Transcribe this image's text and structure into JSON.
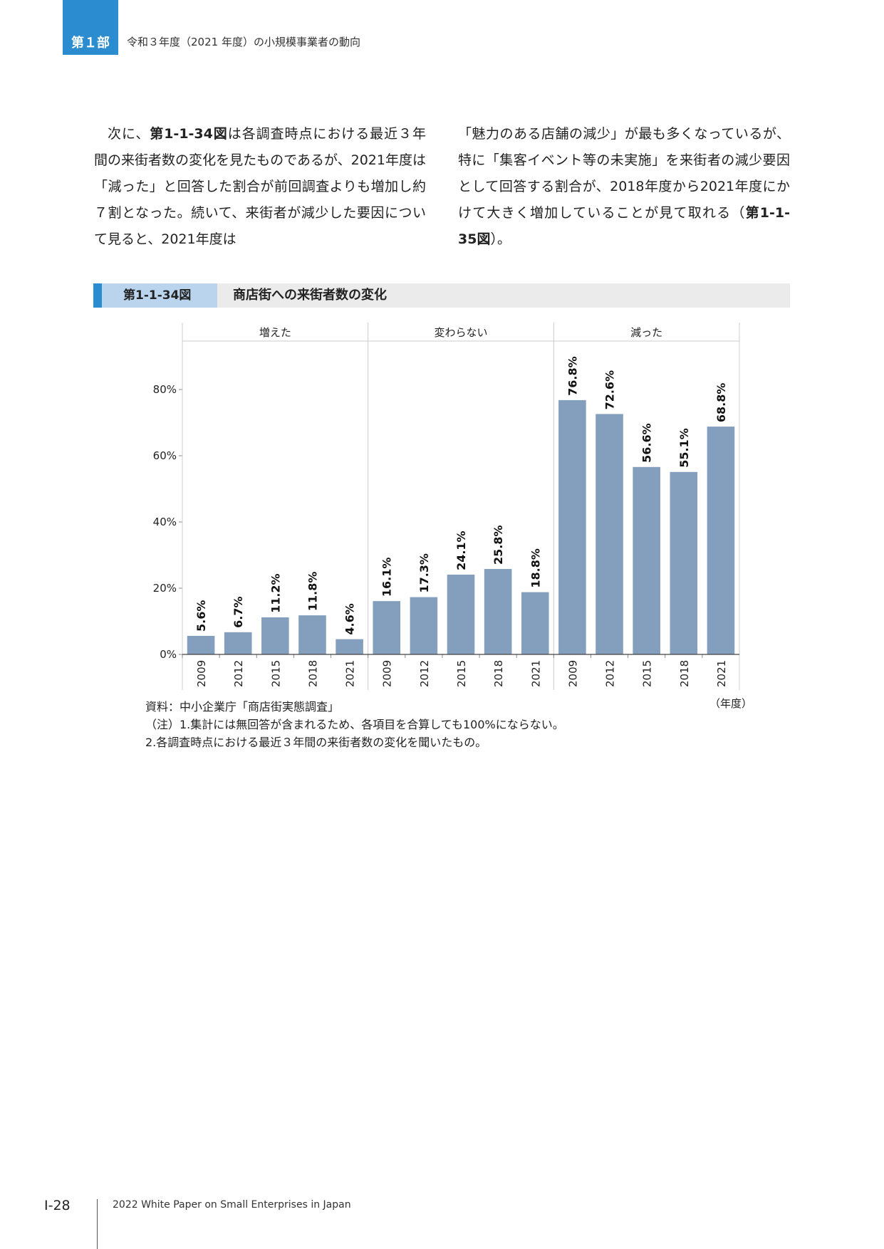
{
  "header": {
    "part_label": "第１部",
    "title": "令和３年度（2021 年度）の小規模事業者の動向"
  },
  "body": {
    "left": {
      "seg1": "次に、",
      "ref1": "第1-1-34図",
      "seg2": "は各調査時点における最近３年間の来街者数の変化を見たものであるが、2021年度は「減った」と回答した割合が前回調査よりも増加し約７割となった。続いて、来街者が減少した要因について見ると、2021年度は"
    },
    "right": {
      "seg1": "「魅力のある店舗の減少」が最も多くなっているが、特に「集客イベント等の未実施」を来街者の減少要因として回答する割合が、2018年度から2021年度にかけて大きく増加していることが見て取れる（",
      "ref2": "第1-1-35図",
      "seg2": "）。"
    }
  },
  "figure": {
    "number": "第1-1-34図",
    "title": "商店街への来街者数の変化"
  },
  "chart_data": {
    "type": "bar",
    "facets": [
      "増えた",
      "変わらない",
      "減った"
    ],
    "categories": [
      "2009",
      "2012",
      "2015",
      "2018",
      "2021"
    ],
    "series": [
      {
        "facet": "増えた",
        "values": [
          5.6,
          6.7,
          11.2,
          11.8,
          4.6
        ],
        "labels": [
          "5.6%",
          "6.7%",
          "11.2%",
          "11.8%",
          "4.6%"
        ]
      },
      {
        "facet": "変わらない",
        "values": [
          16.1,
          17.3,
          24.1,
          25.8,
          18.8
        ],
        "labels": [
          "16.1%",
          "17.3%",
          "24.1%",
          "25.8%",
          "18.8%"
        ]
      },
      {
        "facet": "減った",
        "values": [
          76.8,
          72.6,
          56.6,
          55.1,
          68.8
        ],
        "labels": [
          "76.8%",
          "72.6%",
          "56.6%",
          "55.1%",
          "68.8%"
        ]
      }
    ],
    "yticks": [
      0,
      20,
      40,
      60,
      80
    ],
    "ytick_labels": [
      "0%",
      "20%",
      "40%",
      "60%",
      "80%"
    ],
    "ylim": [
      0,
      95
    ],
    "bar_color": "#839fbd",
    "x_unit": "（年度）"
  },
  "notes": {
    "source": "資料：中小企業庁「商店街実態調査」",
    "note1": "（注）1.集計には無回答が含まれるため、各項目を合算しても100%にならない。",
    "note2": "2.各調査時点における最近３年間の来街者数の変化を聞いたもの。"
  },
  "footer": {
    "page": "Ⅰ-28",
    "title": "2022 White Paper on Small Enterprises in Japan"
  }
}
